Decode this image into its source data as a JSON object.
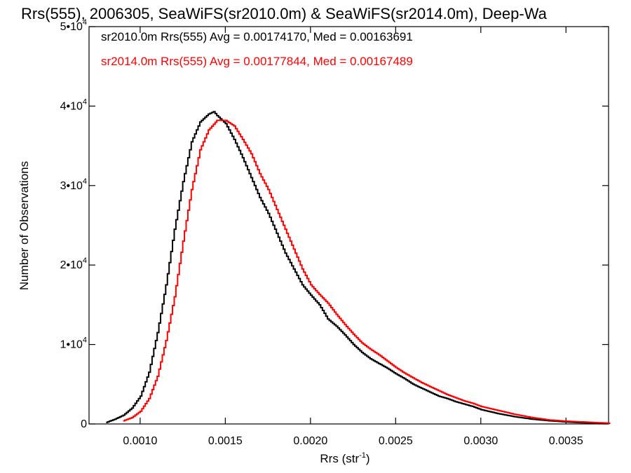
{
  "chart_data": {
    "type": "line",
    "title": "Rrs(555), 2006305, SeaWiFS(sr2010.0m) & SeaWiFS(sr2014.0m), Deep-Wa",
    "xlabel_main": "Rrs (str",
    "xlabel_sup": "-1",
    "xlabel_end": ")",
    "ylabel": "Number of Observations",
    "xlim": [
      0.0007,
      0.00375
    ],
    "ylim": [
      0,
      50000
    ],
    "x_ticks": [
      {
        "value": 0.001,
        "label": "0.0010"
      },
      {
        "value": 0.0015,
        "label": "0.0015"
      },
      {
        "value": 0.002,
        "label": "0.0020"
      },
      {
        "value": 0.0025,
        "label": "0.0025"
      },
      {
        "value": 0.003,
        "label": "0.0030"
      },
      {
        "value": 0.0035,
        "label": "0.0035"
      }
    ],
    "y_ticks": [
      {
        "value": 0,
        "mant": "0",
        "exp": ""
      },
      {
        "value": 10000,
        "mant": "1•10",
        "exp": "4"
      },
      {
        "value": 20000,
        "mant": "2•10",
        "exp": "4"
      },
      {
        "value": 30000,
        "mant": "3•10",
        "exp": "4"
      },
      {
        "value": 40000,
        "mant": "4•10",
        "exp": "4"
      },
      {
        "value": 50000,
        "mant": "5•10",
        "exp": "4"
      }
    ],
    "series": [
      {
        "name": "sr2010.0m Rrs(555) Avg = 0.00174170, Med = 0.00163691",
        "color": "#000000",
        "x": [
          0.0008,
          0.00085,
          0.0009,
          0.00095,
          0.001,
          0.00105,
          0.0011,
          0.00115,
          0.0012,
          0.00125,
          0.0013,
          0.00135,
          0.0014,
          0.00143,
          0.00145,
          0.0015,
          0.00155,
          0.0016,
          0.00165,
          0.0017,
          0.00175,
          0.0018,
          0.00185,
          0.0019,
          0.00195,
          0.002,
          0.00205,
          0.0021,
          0.00215,
          0.0022,
          0.00225,
          0.0023,
          0.00235,
          0.0024,
          0.00245,
          0.0025,
          0.00255,
          0.0026,
          0.00265,
          0.0027,
          0.00275,
          0.0028,
          0.00285,
          0.0029,
          0.00295,
          0.003,
          0.0031,
          0.0032,
          0.0033,
          0.0034,
          0.0035,
          0.0036,
          0.0037,
          0.00375
        ],
        "y": [
          200,
          600,
          1100,
          2000,
          3500,
          6500,
          11500,
          17500,
          24500,
          30500,
          35500,
          38000,
          39000,
          39300,
          38800,
          37800,
          35800,
          33500,
          31000,
          28500,
          26500,
          24000,
          21500,
          19500,
          17500,
          16200,
          15000,
          13200,
          12300,
          11200,
          10000,
          9000,
          8200,
          7600,
          7000,
          6300,
          5700,
          5000,
          4500,
          4000,
          3500,
          3200,
          2800,
          2500,
          2200,
          1800,
          1300,
          900,
          600,
          400,
          250,
          150,
          100,
          80
        ]
      },
      {
        "name": "sr2014.0m Rrs(555) Avg = 0.00177844, Med = 0.00167489",
        "color": "#ff0000",
        "x": [
          0.0009,
          0.00095,
          0.001,
          0.00105,
          0.0011,
          0.00115,
          0.0012,
          0.00125,
          0.0013,
          0.00135,
          0.0014,
          0.00145,
          0.0015,
          0.00155,
          0.0016,
          0.00165,
          0.0017,
          0.00175,
          0.0018,
          0.00185,
          0.0019,
          0.00195,
          0.002,
          0.00205,
          0.0021,
          0.00215,
          0.0022,
          0.00225,
          0.0023,
          0.00235,
          0.0024,
          0.00245,
          0.0025,
          0.00255,
          0.0026,
          0.00265,
          0.0027,
          0.00275,
          0.0028,
          0.00285,
          0.0029,
          0.00295,
          0.003,
          0.0031,
          0.0032,
          0.0033,
          0.0034,
          0.0035,
          0.0036,
          0.0037,
          0.00375
        ],
        "y": [
          400,
          800,
          1600,
          3200,
          6000,
          10500,
          16000,
          23000,
          29500,
          34500,
          37000,
          38200,
          38200,
          37500,
          35800,
          34000,
          31500,
          29500,
          27000,
          24500,
          22000,
          19500,
          17500,
          16300,
          15200,
          13800,
          12500,
          11300,
          10200,
          9400,
          8700,
          7900,
          7100,
          6400,
          5800,
          5200,
          4700,
          4200,
          3700,
          3300,
          2900,
          2600,
          2200,
          1700,
          1200,
          800,
          500,
          350,
          250,
          150,
          100
        ]
      }
    ]
  }
}
